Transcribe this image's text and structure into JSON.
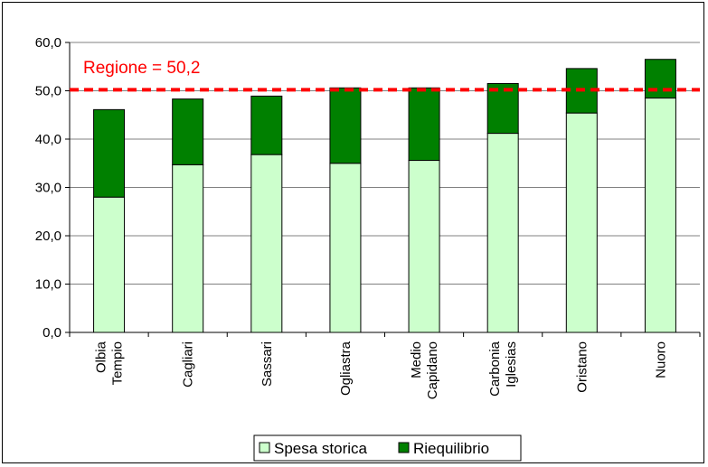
{
  "chart_data": {
    "type": "bar",
    "stacked": true,
    "categories": [
      [
        "Olbia",
        "Tempio"
      ],
      [
        "Cagliari"
      ],
      [
        "Sassari"
      ],
      [
        "Ogliastra"
      ],
      [
        "Medio",
        "Capidano"
      ],
      [
        "Carbonia",
        "Iglesias"
      ],
      [
        "Oristano"
      ],
      [
        "Nuoro"
      ]
    ],
    "series": [
      {
        "name": "Spesa storica",
        "color": "#ccffcc",
        "values": [
          28.0,
          34.7,
          36.8,
          35.0,
          35.6,
          41.2,
          45.4,
          48.5
        ]
      },
      {
        "name": "Riequilibrio",
        "color": "#008000",
        "values": [
          18.1,
          13.6,
          12.1,
          15.6,
          15.0,
          10.3,
          9.2,
          8.0
        ]
      }
    ],
    "ylim": [
      0,
      60
    ],
    "ytick_labels": [
      "0,0",
      "10,0",
      "20,0",
      "30,0",
      "40,0",
      "50,0",
      "60,0"
    ],
    "grid": true,
    "reference_line": {
      "value": 50.2,
      "label": "Regione = 50,2",
      "color": "#ff0000"
    },
    "legend_position": "bottom"
  }
}
